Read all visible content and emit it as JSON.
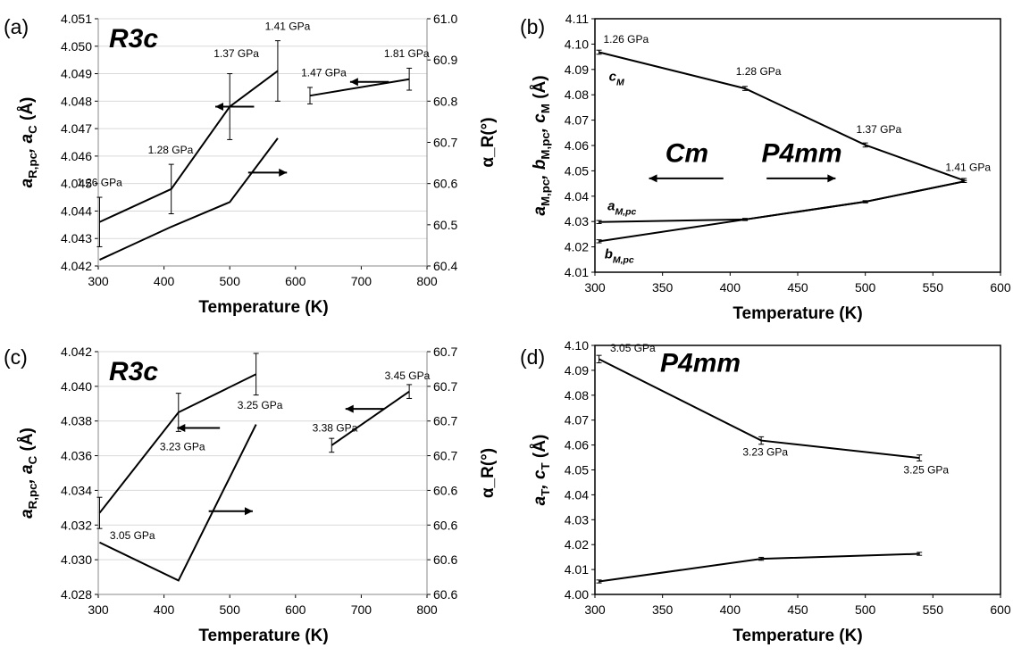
{
  "colors": {
    "line": "#000000",
    "grid": "#d9d9d9",
    "background": "#ffffff"
  },
  "chart_data": [
    {
      "panel": "(a)",
      "type": "line",
      "phase_label": "R3c",
      "xlabel": "Temperature (K)",
      "ylabel": "a_R,pc, a_C (Å)",
      "ylabel2": "α_R(°)",
      "xlim": [
        300,
        800
      ],
      "ylim": [
        4.042,
        4.051
      ],
      "y2lim": [
        60.4,
        61.0
      ],
      "xticks": [
        "300",
        "400",
        "500",
        "600",
        "700",
        "800"
      ],
      "yticks": [
        "4.042",
        "4.043",
        "4.044",
        "4.045",
        "4.046",
        "4.047",
        "4.048",
        "4.049",
        "4.050",
        "4.051"
      ],
      "y2ticks": [
        "60.4",
        "60.5",
        "60.6",
        "60.7",
        "60.8",
        "60.9",
        "61.0"
      ],
      "grid": "horizontal",
      "series": [
        {
          "axis": "left",
          "x": [
            302,
            411,
            500,
            573
          ],
          "y": [
            4.0436,
            4.0448,
            4.0478,
            4.0491
          ],
          "err": [
            0.0009,
            0.0009,
            0.0012,
            0.0011
          ]
        },
        {
          "axis": "left",
          "x": [
            622,
            773
          ],
          "y": [
            4.0482,
            4.0488
          ],
          "err": [
            0.0003,
            0.0004
          ]
        },
        {
          "axis": "right",
          "x": [
            302,
            411,
            500,
            573
          ],
          "y": [
            60.415,
            60.495,
            60.555,
            60.71
          ],
          "err": [
            0,
            0,
            0,
            0
          ]
        }
      ],
      "annotations": [
        {
          "text": "1.26 GPa",
          "x": 302,
          "y": 4.0449,
          "axis": "left"
        },
        {
          "text": "1.28 GPa",
          "x": 410,
          "y": 4.0461,
          "axis": "left"
        },
        {
          "text": "1.37 GPa",
          "x": 510,
          "y": 4.0496,
          "axis": "left"
        },
        {
          "text": "1.41 GPa",
          "x": 588,
          "y": 4.0506,
          "axis": "left"
        },
        {
          "text": "1.47 GPa",
          "x": 643,
          "y": 4.0489,
          "axis": "left"
        },
        {
          "text": "1.81 GPa",
          "x": 769,
          "y": 4.0496,
          "axis": "left"
        }
      ],
      "arrows": [
        {
          "axis": "left",
          "from": [
            537,
            4.0478
          ],
          "to": [
            478,
            4.0478
          ]
        },
        {
          "axis": "left",
          "from": [
            742,
            4.0487
          ],
          "to": [
            683,
            4.0487
          ]
        },
        {
          "axis": "left",
          "from": [
            528,
            4.0454
          ],
          "to": [
            587,
            4.0454
          ]
        }
      ]
    },
    {
      "panel": "(b)",
      "type": "line",
      "phase_label": "Cm",
      "phase_label_2": "P4mm",
      "xlabel": "Temperature (K)",
      "ylabel": "a_M,pc, b_M,pc, c_M (Å)",
      "xlim": [
        300,
        600
      ],
      "ylim": [
        4.01,
        4.11
      ],
      "xticks": [
        "300",
        "350",
        "400",
        "450",
        "500",
        "550",
        "600"
      ],
      "yticks": [
        "4.01",
        "4.02",
        "4.03",
        "4.04",
        "4.05",
        "4.06",
        "4.07",
        "4.08",
        "4.09",
        "4.10",
        "4.11"
      ],
      "grid": "none",
      "series": [
        {
          "name": "c_M",
          "x": [
            303,
            411,
            500,
            573
          ],
          "y": [
            4.0968,
            4.0825,
            4.0602,
            4.0462
          ],
          "err": [
            0.0008,
            0.0008,
            0.0008,
            0.0008
          ]
        },
        {
          "name": "a_M,pc",
          "x": [
            303,
            411,
            500,
            573
          ],
          "y": [
            4.0298,
            4.0308,
            4.0378,
            4.0458
          ],
          "err": [
            0.0006,
            0.0004,
            0.0004,
            0.0004
          ]
        },
        {
          "name": "b_M,pc",
          "x": [
            303,
            411,
            500,
            573
          ],
          "y": [
            4.0222,
            4.0308,
            4.0378,
            4.0458
          ],
          "err": [
            0.0006,
            0.0004,
            0.0004,
            0.0004
          ]
        }
      ],
      "annotations": [
        {
          "text": "1.26 GPa",
          "x": 323,
          "y": 4.1005
        },
        {
          "text": "1.28 GPa",
          "x": 421,
          "y": 4.0878
        },
        {
          "text": "1.37 GPa",
          "x": 510,
          "y": 4.065
        },
        {
          "text": "1.41 GPa",
          "x": 576,
          "y": 4.05
        }
      ],
      "series_labels": [
        {
          "text": "c_M",
          "x": 316,
          "y": 4.0855
        },
        {
          "text": "a_M,pc",
          "x": 320,
          "y": 4.0345
        },
        {
          "text": "b_M,pc",
          "x": 318,
          "y": 4.0155
        }
      ],
      "arrows": [
        {
          "from": [
            395,
            4.047
          ],
          "to": [
            340,
            4.047
          ]
        },
        {
          "from": [
            427,
            4.047
          ],
          "to": [
            478,
            4.047
          ]
        }
      ]
    },
    {
      "panel": "(c)",
      "type": "line",
      "phase_label": "R3c",
      "xlabel": "Temperature (K)",
      "ylabel": "a_R,pc, a_C (Å)",
      "ylabel2": "α_R(°)",
      "xlim": [
        300,
        800
      ],
      "ylim": [
        4.028,
        4.042
      ],
      "y2lim": [
        0,
        7
      ],
      "xticks": [
        "300",
        "400",
        "500",
        "600",
        "700",
        "800"
      ],
      "yticks": [
        "4.028",
        "4.030",
        "4.032",
        "4.034",
        "4.036",
        "4.038",
        "4.040",
        "4.042"
      ],
      "y2ticks": [
        "60.6",
        "60.6",
        "60.6",
        "60.6",
        "60.7",
        "60.7",
        "60.7",
        "60.7"
      ],
      "grid": "horizontal",
      "series": [
        {
          "axis": "left",
          "x": [
            302,
            422,
            540
          ],
          "y": [
            4.0327,
            4.0385,
            4.0407
          ],
          "err": [
            0.0009,
            0.0011,
            0.0012
          ]
        },
        {
          "axis": "left",
          "x": [
            655,
            773
          ],
          "y": [
            4.0366,
            4.0397
          ],
          "err": [
            0.0004,
            0.0004
          ]
        },
        {
          "axis": "right",
          "x": [
            302,
            422,
            540
          ],
          "y": [
            1.5,
            0.4,
            4.9
          ],
          "err": [
            0,
            0,
            0
          ]
        }
      ],
      "annotations": [
        {
          "text": "3.05 GPa",
          "x": 352,
          "y": 4.0312
        },
        {
          "text": "3.23 GPa",
          "x": 428,
          "y": 4.0363
        },
        {
          "text": "3.25 GPa",
          "x": 546,
          "y": 4.0387
        },
        {
          "text": "3.38 GPa",
          "x": 660,
          "y": 4.0374
        },
        {
          "text": "3.45 GPa",
          "x": 770,
          "y": 4.0404
        }
      ],
      "arrows": [
        {
          "from": [
            485,
            4.0376
          ],
          "to": [
            420,
            4.0376
          ]
        },
        {
          "from": [
            735,
            4.0387
          ],
          "to": [
            676,
            4.0387
          ]
        },
        {
          "from": [
            468,
            4.0328
          ],
          "to": [
            535,
            4.0328
          ]
        }
      ]
    },
    {
      "panel": "(d)",
      "type": "line",
      "phase_label": "P4mm",
      "xlabel": "Temperature (K)",
      "ylabel": "a_T, c_T (Å)",
      "xlim": [
        300,
        600
      ],
      "ylim": [
        4.0,
        4.1
      ],
      "xticks": [
        "300",
        "350",
        "400",
        "450",
        "500",
        "550",
        "600"
      ],
      "yticks": [
        "4.00",
        "4.01",
        "4.02",
        "4.03",
        "4.04",
        "4.05",
        "4.06",
        "4.07",
        "4.08",
        "4.09",
        "4.10"
      ],
      "grid": "none",
      "series": [
        {
          "name": "c_T",
          "x": [
            303,
            423,
            540
          ],
          "y": [
            4.0945,
            4.0618,
            4.0548
          ],
          "err": [
            0.0015,
            0.0015,
            0.0012
          ]
        },
        {
          "name": "a_T",
          "x": [
            303,
            423,
            540
          ],
          "y": [
            4.0052,
            4.0143,
            4.0163
          ],
          "err": [
            0.0006,
            0.0006,
            0.0006
          ]
        }
      ],
      "annotations": [
        {
          "text": "3.05 GPa",
          "x": 328,
          "y": 4.0975
        },
        {
          "text": "3.23 GPa",
          "x": 426,
          "y": 4.0558
        },
        {
          "text": "3.25 GPa",
          "x": 545,
          "y": 4.0485
        }
      ]
    }
  ]
}
